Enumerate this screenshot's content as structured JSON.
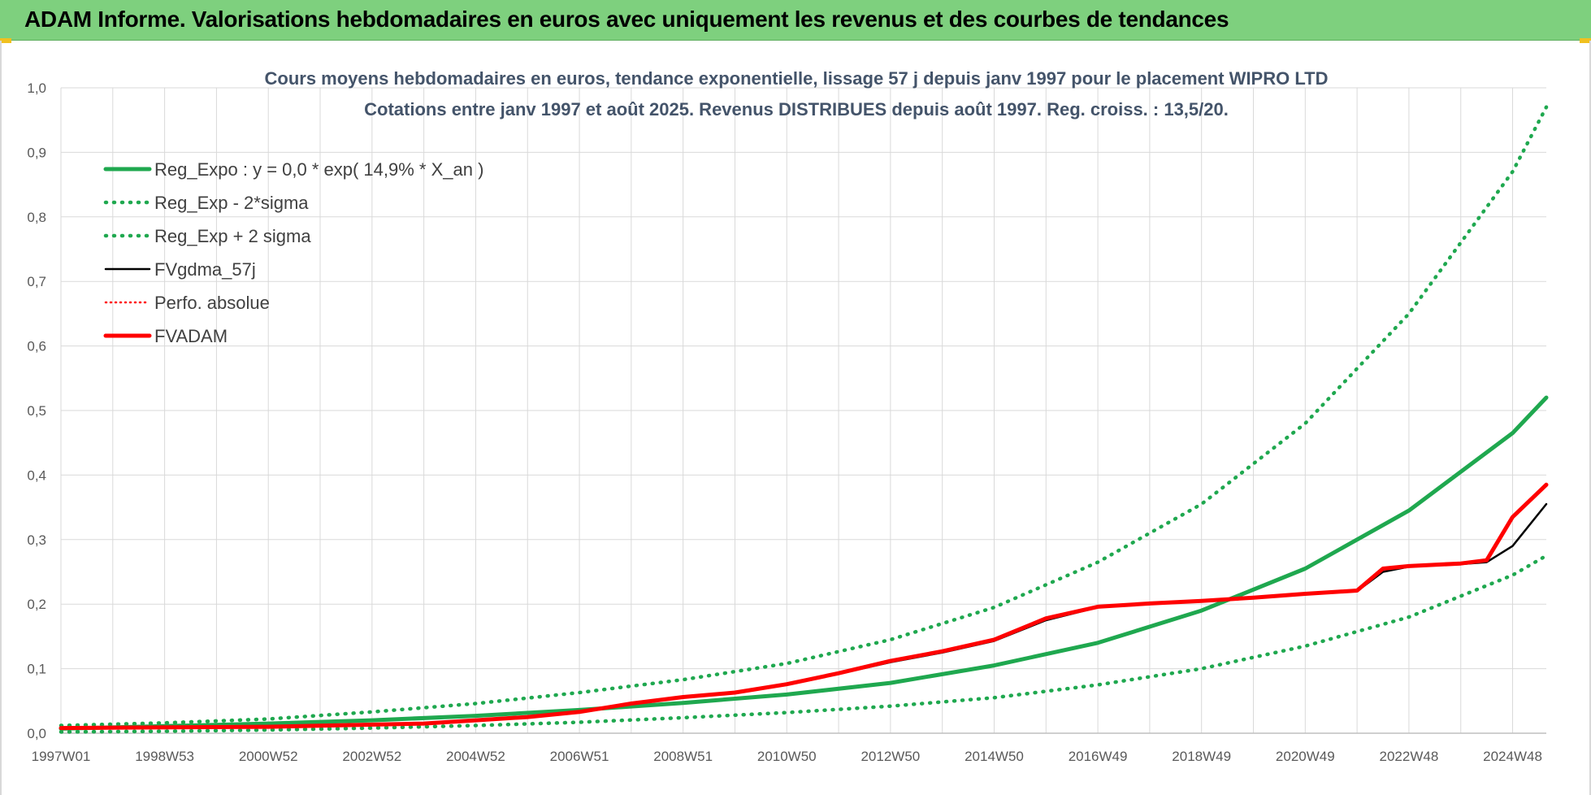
{
  "header": {
    "title": "ADAM Informe. Valorisations hebdomadaires en euros avec uniquement les revenus et des courbes de tendances"
  },
  "chart_data": {
    "type": "line",
    "title_line1": "Cours moyens hebdomadaires en euros, tendance exponentielle, lissage 57 j depuis janv 1997 pour le placement WIPRO LTD",
    "title_line2": "Cotations entre janv 1997 et août 2025. Revenus DISTRIBUES depuis août 1997. Reg. croiss. : 13,5/20.",
    "x_tick_labels": [
      "1997W01",
      "1998W53",
      "2000W52",
      "2002W52",
      "2004W52",
      "2006W51",
      "2008W51",
      "2010W50",
      "2012W50",
      "2014W50",
      "2016W49",
      "2018W49",
      "2020W49",
      "2022W48",
      "2024W48"
    ],
    "x_tick_years": [
      1997.0,
      1999.0,
      2001.0,
      2003.0,
      2005.0,
      2007.0,
      2009.0,
      2011.0,
      2013.0,
      2015.0,
      2017.0,
      2019.0,
      2021.0,
      2023.0,
      2025.0
    ],
    "x_range": [
      1997.0,
      2025.65
    ],
    "y_tick_labels": [
      "0,0",
      "0,1",
      "0,2",
      "0,3",
      "0,4",
      "0,5",
      "0,6",
      "0,7",
      "0,8",
      "0,9",
      "1,0"
    ],
    "ylim": [
      0,
      1.0
    ],
    "grid": true,
    "legend_position": "top-left",
    "colors": {
      "green": "#1fa84f",
      "red": "#ff0000",
      "black": "#000000",
      "banner": "#7ed07e"
    },
    "series": [
      {
        "name": "Reg_Expo : y = 0,0 * exp( 14,9% *  X_an )",
        "style": "solid-thick",
        "color": "#1fa84f",
        "x": [
          1997,
          1999,
          2001,
          2003,
          2005,
          2007,
          2009,
          2011,
          2013,
          2015,
          2017,
          2019,
          2021,
          2023,
          2025,
          2025.65
        ],
        "y": [
          0.007,
          0.011,
          0.015,
          0.02,
          0.027,
          0.036,
          0.047,
          0.06,
          0.078,
          0.105,
          0.14,
          0.19,
          0.255,
          0.345,
          0.465,
          0.52
        ]
      },
      {
        "name": "Reg_Exp - 2*sigma",
        "style": "dotted",
        "color": "#1fa84f",
        "x": [
          1997,
          1999,
          2001,
          2003,
          2005,
          2007,
          2009,
          2011,
          2013,
          2015,
          2017,
          2019,
          2021,
          2023,
          2025,
          2025.65
        ],
        "y": [
          0.002,
          0.003,
          0.005,
          0.008,
          0.012,
          0.017,
          0.024,
          0.032,
          0.042,
          0.055,
          0.075,
          0.1,
          0.135,
          0.18,
          0.245,
          0.275
        ]
      },
      {
        "name": "Reg_Exp + 2 sigma",
        "style": "dotted",
        "color": "#1fa84f",
        "x": [
          1997,
          1999,
          2001,
          2003,
          2005,
          2007,
          2009,
          2011,
          2013,
          2015,
          2017,
          2019,
          2021,
          2023,
          2025,
          2025.65
        ],
        "y": [
          0.012,
          0.016,
          0.022,
          0.033,
          0.046,
          0.063,
          0.083,
          0.108,
          0.145,
          0.195,
          0.265,
          0.355,
          0.48,
          0.65,
          0.87,
          0.97
        ]
      },
      {
        "name": "FVgdma_57j",
        "style": "solid",
        "color": "#000000",
        "x": [
          1997,
          2001,
          2004,
          2005,
          2006,
          2007,
          2008,
          2009,
          2010,
          2011,
          2012,
          2013,
          2014,
          2015,
          2016,
          2017,
          2018,
          2019,
          2020,
          2021,
          2022,
          2022.5,
          2023,
          2024,
          2024.5,
          2025,
          2025.65
        ],
        "y": [
          0.008,
          0.01,
          0.014,
          0.02,
          0.024,
          0.032,
          0.045,
          0.055,
          0.062,
          0.075,
          0.092,
          0.11,
          0.125,
          0.143,
          0.175,
          0.195,
          0.2,
          0.205,
          0.21,
          0.215,
          0.22,
          0.25,
          0.258,
          0.262,
          0.265,
          0.29,
          0.355
        ]
      },
      {
        "name": "Perfo. absolue",
        "style": "dotted-thin",
        "color": "#ff0000",
        "x": [
          1997,
          2001,
          2004,
          2005,
          2006,
          2007,
          2008,
          2009,
          2010,
          2011,
          2012,
          2013,
          2014,
          2015,
          2016,
          2017,
          2018,
          2019,
          2020,
          2021,
          2022,
          2022.5,
          2023,
          2024,
          2024.5,
          2025,
          2025.65
        ],
        "y": [
          0.008,
          0.01,
          0.015,
          0.02,
          0.025,
          0.033,
          0.046,
          0.056,
          0.063,
          0.076,
          0.093,
          0.112,
          0.127,
          0.145,
          0.178,
          0.196,
          0.201,
          0.205,
          0.21,
          0.216,
          0.221,
          0.255,
          0.259,
          0.263,
          0.268,
          0.335,
          0.385
        ]
      },
      {
        "name": "FVADAM",
        "style": "solid-thick",
        "color": "#ff0000",
        "x": [
          1997,
          2001,
          2004,
          2005,
          2006,
          2007,
          2008,
          2009,
          2010,
          2011,
          2012,
          2013,
          2014,
          2015,
          2016,
          2017,
          2018,
          2019,
          2020,
          2021,
          2022,
          2022.5,
          2023,
          2024,
          2024.5,
          2025,
          2025.65
        ],
        "y": [
          0.008,
          0.01,
          0.015,
          0.02,
          0.025,
          0.033,
          0.046,
          0.056,
          0.063,
          0.076,
          0.093,
          0.112,
          0.127,
          0.145,
          0.178,
          0.196,
          0.201,
          0.205,
          0.21,
          0.216,
          0.221,
          0.255,
          0.259,
          0.263,
          0.268,
          0.335,
          0.385
        ]
      }
    ]
  }
}
